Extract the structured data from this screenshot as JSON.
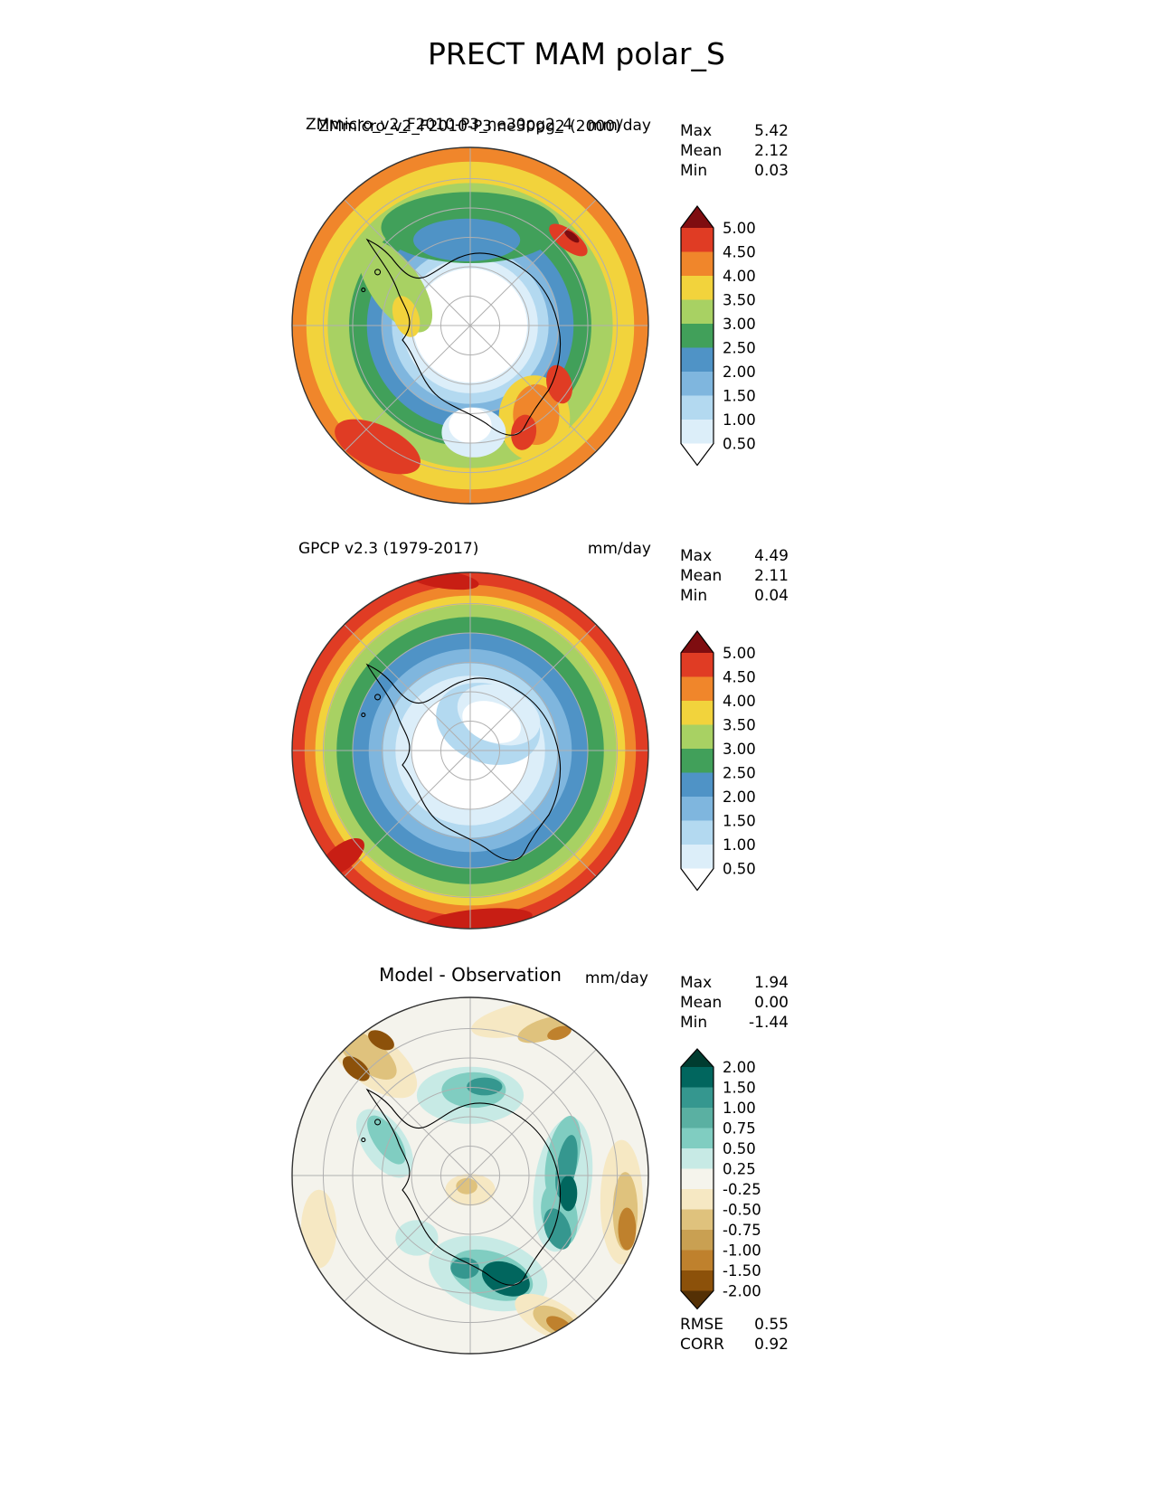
{
  "page": {
    "title": "PRECT MAM polar_S"
  },
  "chart_data": {
    "type": "heatmap",
    "subtype": "polar-stereographic-filled-contour-maps",
    "variable": "PRECT",
    "season": "MAM",
    "region": "polar_S",
    "units": "mm/day",
    "panels": [
      {
        "name": "model",
        "title_lines": [
          "ZMmicro_v2_F2010-P3_ne30pg2_4",
          "ZMmicro_v2_F2010-P3.ne30pg2 (2000)"
        ],
        "units": "mm/day",
        "stats": [
          {
            "label": "Max",
            "value": "5.42"
          },
          {
            "label": "Mean",
            "value": "2.12"
          },
          {
            "label": "Min",
            "value": "0.03"
          }
        ],
        "colorbar": {
          "tick_labels": [
            "5.00",
            "4.50",
            "4.00",
            "3.50",
            "3.00",
            "2.50",
            "2.00",
            "1.50",
            "1.00",
            "0.50"
          ],
          "band_colors_top_to_bottom": [
            "#e03c24",
            "#f0862b",
            "#f2d33c",
            "#a8d163",
            "#41a05a",
            "#4f93c6",
            "#7fb6de",
            "#b3d9f0",
            "#dceef9"
          ],
          "above_color": "#7f0d10",
          "below_color": "#ffffff"
        },
        "map": {
          "rings": [
            {
              "r": 1.0,
              "color": "#f0862b"
            },
            {
              "r": 0.92,
              "color": "#f2d33c"
            },
            {
              "r": 0.8,
              "color": "#a8d163"
            },
            {
              "r": 0.68,
              "color": "#41a05a"
            },
            {
              "r": 0.58,
              "color": "#4f93c6"
            },
            {
              "r": 0.5,
              "color": "#7fb6de"
            },
            {
              "r": 0.44,
              "color": "#b3d9f0"
            },
            {
              "r": 0.38,
              "color": "#dceef9"
            },
            {
              "r": 0.32,
              "color": "#ffffff"
            }
          ],
          "blobs": [
            {
              "x": 0.0,
              "y": -0.55,
              "rx": 0.5,
              "ry": 0.2,
              "rot": 0,
              "c": "#41a05a"
            },
            {
              "x": -0.02,
              "y": -0.48,
              "rx": 0.3,
              "ry": 0.12,
              "rot": 0,
              "c": "#4f93c6"
            },
            {
              "x": -0.42,
              "y": -0.22,
              "rx": 0.14,
              "ry": 0.3,
              "rot": -35,
              "c": "#a8d163"
            },
            {
              "x": -0.36,
              "y": -0.05,
              "rx": 0.07,
              "ry": 0.12,
              "rot": -20,
              "c": "#f2d33c"
            },
            {
              "x": -0.52,
              "y": 0.68,
              "rx": 0.26,
              "ry": 0.12,
              "rot": 25,
              "c": "#e03c24"
            },
            {
              "x": 0.36,
              "y": 0.52,
              "rx": 0.2,
              "ry": 0.24,
              "rot": 0,
              "c": "#f2d33c"
            },
            {
              "x": 0.37,
              "y": 0.5,
              "rx": 0.13,
              "ry": 0.17,
              "rot": 0,
              "c": "#f0862b"
            },
            {
              "x": 0.3,
              "y": 0.6,
              "rx": 0.07,
              "ry": 0.1,
              "rot": 10,
              "c": "#e03c24"
            },
            {
              "x": 0.5,
              "y": 0.33,
              "rx": 0.07,
              "ry": 0.11,
              "rot": -15,
              "c": "#e03c24"
            },
            {
              "x": 0.55,
              "y": -0.48,
              "rx": 0.13,
              "ry": 0.055,
              "rot": 38,
              "c": "#e03c24"
            },
            {
              "x": 0.57,
              "y": -0.5,
              "rx": 0.05,
              "ry": 0.02,
              "rot": 38,
              "c": "#7f0d10"
            },
            {
              "x": 0.02,
              "y": 0.6,
              "rx": 0.18,
              "ry": 0.14,
              "rot": 0,
              "c": "#dceef9"
            },
            {
              "x": 0.0,
              "y": 0.56,
              "rx": 0.12,
              "ry": 0.1,
              "rot": 0,
              "c": "#ffffff"
            }
          ]
        }
      },
      {
        "name": "observation",
        "title_lines": [
          "GPCP v2.3 (1979-2017)"
        ],
        "units": "mm/day",
        "stats": [
          {
            "label": "Max",
            "value": "4.49"
          },
          {
            "label": "Mean",
            "value": "2.11"
          },
          {
            "label": "Min",
            "value": "0.04"
          }
        ],
        "colorbar": {
          "tick_labels": [
            "5.00",
            "4.50",
            "4.00",
            "3.50",
            "3.00",
            "2.50",
            "2.00",
            "1.50",
            "1.00",
            "0.50"
          ],
          "band_colors_top_to_bottom": [
            "#e03c24",
            "#f0862b",
            "#f2d33c",
            "#a8d163",
            "#41a05a",
            "#4f93c6",
            "#7fb6de",
            "#b3d9f0",
            "#dceef9"
          ],
          "above_color": "#7f0d10",
          "below_color": "#ffffff"
        },
        "map": {
          "rings": [
            {
              "r": 1.0,
              "color": "#e03c24"
            },
            {
              "r": 0.93,
              "color": "#f0862b"
            },
            {
              "r": 0.87,
              "color": "#f2d33c"
            },
            {
              "r": 0.82,
              "color": "#a8d163"
            },
            {
              "r": 0.75,
              "color": "#41a05a"
            },
            {
              "r": 0.66,
              "color": "#4f93c6"
            },
            {
              "r": 0.57,
              "color": "#7fb6de"
            },
            {
              "r": 0.49,
              "color": "#b3d9f0"
            },
            {
              "r": 0.42,
              "color": "#dceef9"
            },
            {
              "r": 0.33,
              "color": "#ffffff"
            }
          ],
          "blobs": [
            {
              "x": 0.1,
              "y": -0.15,
              "rx": 0.3,
              "ry": 0.22,
              "rot": 20,
              "c": "#b3d9f0"
            },
            {
              "x": 0.16,
              "y": -0.2,
              "rx": 0.24,
              "ry": 0.16,
              "rot": 20,
              "c": "#dceef9"
            },
            {
              "x": 0.12,
              "y": -0.16,
              "rx": 0.17,
              "ry": 0.11,
              "rot": 20,
              "c": "#ffffff"
            },
            {
              "x": -0.15,
              "y": -0.96,
              "rx": 0.2,
              "ry": 0.05,
              "rot": 8,
              "c": "#c81e14"
            },
            {
              "x": 0.05,
              "y": 0.95,
              "rx": 0.3,
              "ry": 0.06,
              "rot": -5,
              "c": "#c81e14"
            },
            {
              "x": -0.72,
              "y": 0.6,
              "rx": 0.15,
              "ry": 0.07,
              "rot": -38,
              "c": "#c81e14"
            }
          ]
        }
      },
      {
        "name": "difference",
        "title_lines": [
          "Model - Observation"
        ],
        "units": "mm/day",
        "stats": [
          {
            "label": "Max",
            "value": "1.94"
          },
          {
            "label": "Mean",
            "value": "0.00"
          },
          {
            "label": "Min",
            "value": "-1.44"
          }
        ],
        "extra_stats": [
          {
            "label": "RMSE",
            "value": "0.55"
          },
          {
            "label": "CORR",
            "value": "0.92"
          }
        ],
        "colorbar": {
          "tick_labels": [
            "2.00",
            "1.50",
            "1.00",
            "0.75",
            "0.50",
            "0.25",
            "-0.25",
            "-0.50",
            "-0.75",
            "-1.00",
            "-1.50",
            "-2.00"
          ],
          "band_colors_top_to_bottom": [
            "#01665e",
            "#35978f",
            "#5ab0a2",
            "#80cdc1",
            "#c7eae5",
            "#f5f4ec",
            "#f6e8c3",
            "#dfc27d",
            "#c9a052",
            "#bf812d",
            "#8c510a"
          ],
          "above_color": "#003c30",
          "below_color": "#543005"
        },
        "map": {
          "rings": [
            {
              "r": 1.0,
              "color": "#f4f3ec"
            }
          ],
          "blobs": [
            {
              "x": 0.1,
              "y": 0.55,
              "rx": 0.34,
              "ry": 0.2,
              "rot": 15,
              "c": "#c7eae5"
            },
            {
              "x": 0.52,
              "y": 0.05,
              "rx": 0.16,
              "ry": 0.38,
              "rot": 8,
              "c": "#c7eae5"
            },
            {
              "x": 0.0,
              "y": -0.45,
              "rx": 0.3,
              "ry": 0.16,
              "rot": 0,
              "c": "#c7eae5"
            },
            {
              "x": -0.48,
              "y": -0.18,
              "rx": 0.12,
              "ry": 0.22,
              "rot": -35,
              "c": "#c7eae5"
            },
            {
              "x": -0.3,
              "y": 0.35,
              "rx": 0.12,
              "ry": 0.1,
              "rot": 0,
              "c": "#c7eae5"
            },
            {
              "x": 0.52,
              "y": -0.1,
              "rx": 0.09,
              "ry": 0.24,
              "rot": 12,
              "c": "#80cdc1"
            },
            {
              "x": 0.5,
              "y": 0.22,
              "rx": 0.1,
              "ry": 0.18,
              "rot": -10,
              "c": "#80cdc1"
            },
            {
              "x": 0.12,
              "y": 0.56,
              "rx": 0.24,
              "ry": 0.13,
              "rot": 18,
              "c": "#80cdc1"
            },
            {
              "x": 0.02,
              "y": -0.48,
              "rx": 0.18,
              "ry": 0.1,
              "rot": 0,
              "c": "#80cdc1"
            },
            {
              "x": -0.47,
              "y": -0.2,
              "rx": 0.07,
              "ry": 0.16,
              "rot": -35,
              "c": "#80cdc1"
            },
            {
              "x": 0.54,
              "y": -0.05,
              "rx": 0.055,
              "ry": 0.18,
              "rot": 10,
              "c": "#35978f"
            },
            {
              "x": 0.49,
              "y": 0.3,
              "rx": 0.07,
              "ry": 0.12,
              "rot": -20,
              "c": "#35978f"
            },
            {
              "x": 0.08,
              "y": -0.5,
              "rx": 0.1,
              "ry": 0.05,
              "rot": 0,
              "c": "#35978f"
            },
            {
              "x": -0.03,
              "y": 0.52,
              "rx": 0.08,
              "ry": 0.06,
              "rot": 0,
              "c": "#35978f"
            },
            {
              "x": 0.2,
              "y": 0.58,
              "rx": 0.14,
              "ry": 0.09,
              "rot": 22,
              "c": "#01665e"
            },
            {
              "x": 0.55,
              "y": 0.1,
              "rx": 0.05,
              "ry": 0.1,
              "rot": 0,
              "c": "#01665e"
            },
            {
              "x": -0.55,
              "y": -0.65,
              "rx": 0.3,
              "ry": 0.14,
              "rot": 38,
              "c": "#f6e8c3"
            },
            {
              "x": 0.85,
              "y": 0.15,
              "rx": 0.12,
              "ry": 0.35,
              "rot": 0,
              "c": "#f6e8c3"
            },
            {
              "x": 0.3,
              "y": -0.88,
              "rx": 0.3,
              "ry": 0.09,
              "rot": -12,
              "c": "#f6e8c3"
            },
            {
              "x": 0.45,
              "y": 0.8,
              "rx": 0.22,
              "ry": 0.1,
              "rot": 28,
              "c": "#f6e8c3"
            },
            {
              "x": -0.85,
              "y": 0.3,
              "rx": 0.1,
              "ry": 0.22,
              "rot": 0,
              "c": "#f6e8c3"
            },
            {
              "x": 0.0,
              "y": 0.08,
              "rx": 0.14,
              "ry": 0.09,
              "rot": 0,
              "c": "#f6e8c3"
            },
            {
              "x": -0.58,
              "y": -0.68,
              "rx": 0.2,
              "ry": 0.09,
              "rot": 38,
              "c": "#dfc27d"
            },
            {
              "x": 0.42,
              "y": -0.82,
              "rx": 0.16,
              "ry": 0.06,
              "rot": -18,
              "c": "#dfc27d"
            },
            {
              "x": 0.87,
              "y": 0.2,
              "rx": 0.07,
              "ry": 0.22,
              "rot": 0,
              "c": "#dfc27d"
            },
            {
              "x": 0.48,
              "y": 0.82,
              "rx": 0.14,
              "ry": 0.07,
              "rot": 28,
              "c": "#dfc27d"
            },
            {
              "x": -0.02,
              "y": 0.06,
              "rx": 0.06,
              "ry": 0.045,
              "rot": 0,
              "c": "#dfc27d"
            },
            {
              "x": -0.64,
              "y": -0.6,
              "rx": 0.09,
              "ry": 0.05,
              "rot": 40,
              "c": "#8c510a"
            },
            {
              "x": -0.5,
              "y": -0.76,
              "rx": 0.08,
              "ry": 0.045,
              "rot": 30,
              "c": "#8c510a"
            },
            {
              "x": 0.5,
              "y": -0.8,
              "rx": 0.07,
              "ry": 0.035,
              "rot": -18,
              "c": "#bf812d"
            },
            {
              "x": 0.88,
              "y": 0.3,
              "rx": 0.05,
              "ry": 0.12,
              "rot": 0,
              "c": "#bf812d"
            },
            {
              "x": 0.5,
              "y": 0.84,
              "rx": 0.08,
              "ry": 0.04,
              "rot": 28,
              "c": "#bf812d"
            }
          ]
        }
      }
    ]
  }
}
